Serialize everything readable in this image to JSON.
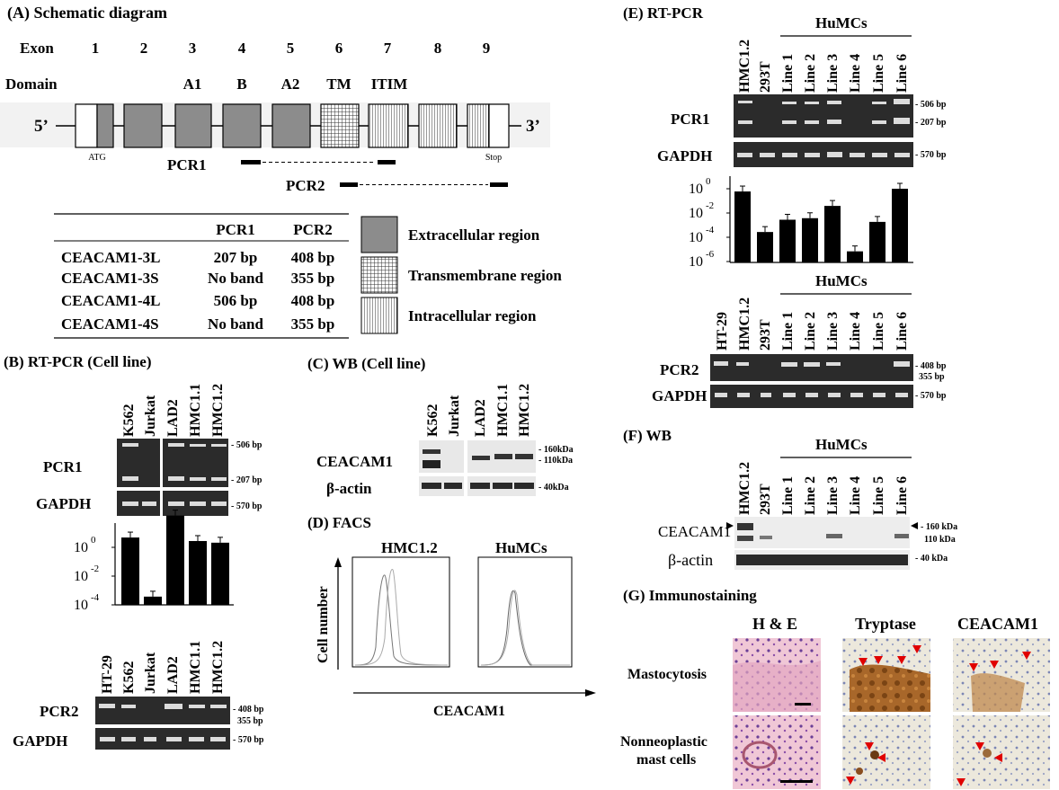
{
  "panelA": {
    "title": "(A) Schematic diagram",
    "exon_label": "Exon",
    "exons": [
      "1",
      "2",
      "3",
      "4",
      "5",
      "6",
      "7",
      "8",
      "9"
    ],
    "domain_label": "Domain",
    "domains": [
      "A1",
      "B",
      "A2",
      "TM",
      "ITIM"
    ],
    "five_prime": "5’",
    "three_prime": "3’",
    "atg": "ATG",
    "stop": "Stop",
    "pcr1": "PCR1",
    "pcr2": "PCR2",
    "table": {
      "headers": [
        "",
        "PCR1",
        "PCR2"
      ],
      "rows": [
        [
          "CEACAM1-3L",
          "207 bp",
          "408 bp"
        ],
        [
          "CEACAM1-3S",
          "No band",
          "355 bp"
        ],
        [
          "CEACAM1-4L",
          "506 bp",
          "408 bp"
        ],
        [
          "CEACAM1-4S",
          "No band",
          "355 bp"
        ]
      ]
    },
    "legend": [
      "Extracellular region",
      "Transmembrane region",
      "Intracellular region"
    ]
  },
  "panelB": {
    "title": "(B) RT-PCR (Cell line)",
    "lanes": [
      "K562",
      "Jurkat",
      "LAD2",
      "HMC1.1",
      "HMC1.2"
    ],
    "pcr1_label": "PCR1",
    "gapdh_label": "GAPDH",
    "markers1": [
      "- 506 bp",
      "- 207 bp"
    ],
    "marker_gapdh": "- 570 bp",
    "y_ticks": [
      "10",
      "10",
      "10"
    ],
    "y_exps": [
      "0",
      "-2",
      "-4"
    ],
    "lanes2": [
      "HT-29",
      "K562",
      "Jurkat",
      "LAD2",
      "HMC1.1",
      "HMC1.2"
    ],
    "pcr2_label": "PCR2",
    "markers2": [
      "- 408 bp",
      "355 bp"
    ]
  },
  "panelC": {
    "title": "(C) WB (Cell line)",
    "lanes": [
      "K562",
      "Jurkat",
      "LAD2",
      "HMC1.1",
      "HMC1.2"
    ],
    "ceacam1_label": "CEACAM1",
    "actin_label": "β-actin",
    "markers": [
      "- 160kDa",
      "- 110kDa"
    ],
    "marker_actin": "- 40kDa"
  },
  "panelD": {
    "title": "(D) FACS",
    "sub1": "HMC1.2",
    "sub2": "HuMCs",
    "ylabel": "Cell number",
    "xlabel": "CEACAM1"
  },
  "panelE": {
    "title": "(E) RT-PCR",
    "group_label": "HuMCs",
    "lanes": [
      "HMC1.2",
      "293T",
      "Line 1",
      "Line 2",
      "Line 3",
      "Line 4",
      "Line 5",
      "Line 6"
    ],
    "pcr1_label": "PCR1",
    "gapdh_label": "GAPDH",
    "markers1": [
      "- 506 bp",
      "- 207 bp"
    ],
    "marker_gapdh": "- 570 bp",
    "y_ticks": [
      "10",
      "10",
      "10",
      "10"
    ],
    "y_exps": [
      "0",
      "-2",
      "-4",
      "-6"
    ],
    "lanes2": [
      "HT-29",
      "HMC1.2",
      "293T",
      "Line 1",
      "Line 2",
      "Line 3",
      "Line 4",
      "Line 5",
      "Line 6"
    ],
    "pcr2_label": "PCR2",
    "markers2": [
      "- 408 bp",
      "355 bp"
    ]
  },
  "panelF": {
    "title": "(F) WB",
    "group_label": "HuMCs",
    "lanes": [
      "HMC1.2",
      "293T",
      "Line 1",
      "Line 2",
      "Line 3",
      "Line 4",
      "Line 5",
      "Line 6"
    ],
    "ceacam1_label": "CEACAM1",
    "actin_label": "β-actin",
    "markers": [
      "- 160 kDa",
      "110 kDa"
    ],
    "marker_actin": "- 40 kDa"
  },
  "panelG": {
    "title": "(G) Immunostaining",
    "columns": [
      "H & E",
      "Tryptase",
      "CEACAM1"
    ],
    "row1": "Mastocytosis",
    "row2a": "Nonneoplastic",
    "row2b": "mast cells"
  },
  "chart_data": [
    {
      "type": "bar",
      "categories": [
        "K562",
        "Jurkat",
        "LAD2",
        "HMC1.1",
        "HMC1.2"
      ],
      "values": [
        0.8,
        0.0003,
        15,
        0.5,
        0.4
      ],
      "ylim": [
        0.0001,
        10
      ],
      "yscale": "log"
    },
    {
      "type": "bar",
      "categories": [
        "HMC1.2",
        "293T",
        "Line 1",
        "Line 2",
        "Line 3",
        "Line 4",
        "Line 5",
        "Line 6"
      ],
      "values": [
        0.6,
        0.0003,
        0.003,
        0.004,
        0.04,
        8e-06,
        0.002,
        1.0
      ],
      "ylim": [
        1e-06,
        1
      ],
      "yscale": "log"
    }
  ]
}
